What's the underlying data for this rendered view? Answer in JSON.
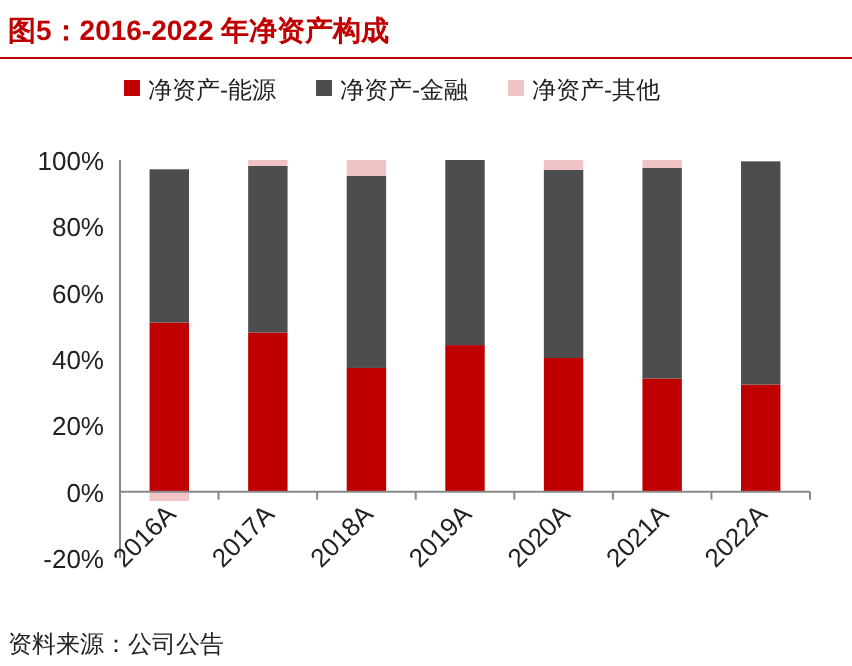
{
  "chart_data": {
    "type": "bar",
    "stacked": true,
    "title": "图5：2016-2022 年净资产构成",
    "categories": [
      "2016A",
      "2017A",
      "2018A",
      "2019A",
      "2020A",
      "2021A",
      "2022A"
    ],
    "series": [
      {
        "name": "净资产-能源",
        "color": "#c00000",
        "values": [
          51.0,
          48.0,
          37.3,
          44.2,
          40.3,
          34.1,
          32.3
        ]
      },
      {
        "name": "净资产-金融",
        "color": "#4d4d4f",
        "values": [
          46.2,
          50.2,
          57.9,
          55.8,
          56.7,
          63.5,
          67.3
        ]
      },
      {
        "name": "净资产-其他",
        "color": "#f0c4c6",
        "values": [
          -2.8,
          1.8,
          4.8,
          0,
          3.0,
          2.4,
          null
        ]
      }
    ],
    "ylim": [
      -20,
      100
    ],
    "yticks": [
      {
        "value": -20,
        "label": "-20%"
      },
      {
        "value": 0,
        "label": "0%"
      },
      {
        "value": 20,
        "label": "20%"
      },
      {
        "value": 40,
        "label": "40%"
      },
      {
        "value": 60,
        "label": "60%"
      },
      {
        "value": 80,
        "label": "80%"
      },
      {
        "value": 100,
        "label": "100%"
      }
    ],
    "legend": "top",
    "grid": false,
    "annotations": [
      "资料来源：公司公告"
    ]
  }
}
